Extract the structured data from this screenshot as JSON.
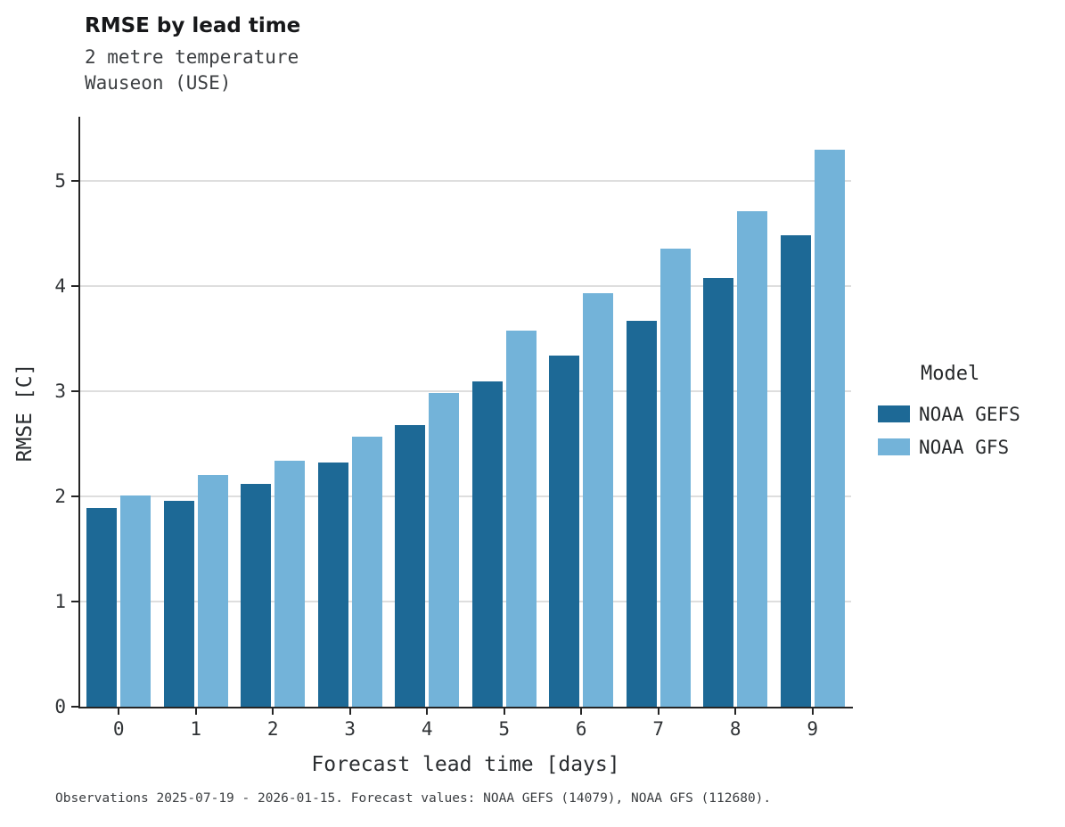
{
  "title": "RMSE by lead time",
  "subtitle1": "2 metre temperature",
  "subtitle2": "Wauseon (USE)",
  "caption": "Observations 2025-07-19 - 2026-01-15. Forecast values: NOAA GEFS (14079), NOAA GFS (112680).",
  "legend": {
    "title": "Model"
  },
  "colors": {
    "noaa_gefs": "#1d6996",
    "noaa_gfs": "#73b3d9",
    "grid": "#dedede",
    "axis": "#252525"
  },
  "chart_data": {
    "type": "bar",
    "title": "RMSE by lead time",
    "subtitle": [
      "2 metre temperature",
      "Wauseon (USE)"
    ],
    "xlabel": "Forecast lead time [days]",
    "ylabel": "RMSE [C]",
    "categories": [
      "0",
      "1",
      "2",
      "3",
      "4",
      "5",
      "6",
      "7",
      "8",
      "9"
    ],
    "series": [
      {
        "name": "NOAA GEFS",
        "color": "#1d6996",
        "values": [
          1.89,
          1.96,
          2.12,
          2.32,
          2.68,
          3.09,
          3.34,
          3.67,
          4.08,
          4.48
        ]
      },
      {
        "name": "NOAA GFS",
        "color": "#73b3d9",
        "values": [
          2.01,
          2.2,
          2.34,
          2.57,
          2.98,
          3.58,
          3.93,
          4.36,
          4.71,
          5.3
        ]
      }
    ],
    "ylim": [
      0,
      5.59
    ],
    "yticks": [
      0,
      1,
      2,
      3,
      4,
      5
    ],
    "grid": true,
    "legend_title": "Model",
    "legend_position": "right"
  }
}
